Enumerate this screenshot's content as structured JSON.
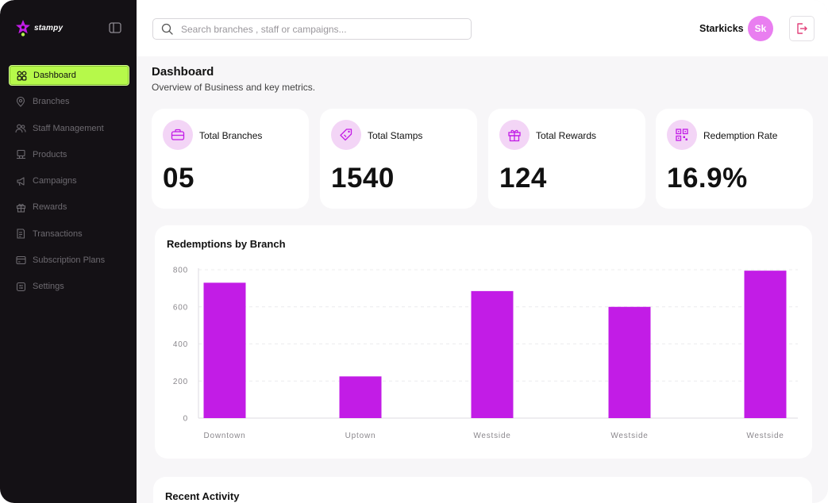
{
  "brand": {
    "name": "stampy",
    "accent": "#b6f94a",
    "primary": "#c21ce6"
  },
  "sidebar": {
    "items": [
      {
        "label": "Dashboard",
        "icon": "dashboard-icon",
        "active": true
      },
      {
        "label": "Branches",
        "icon": "location-pin-icon"
      },
      {
        "label": "Staff Management",
        "icon": "users-icon"
      },
      {
        "label": "Products",
        "icon": "box-icon"
      },
      {
        "label": "Campaigns",
        "icon": "megaphone-icon"
      },
      {
        "label": "Rewards",
        "icon": "gift-icon"
      },
      {
        "label": "Transactions",
        "icon": "receipt-icon"
      },
      {
        "label": "Subscription Plans",
        "icon": "card-icon"
      },
      {
        "label": "Settings",
        "icon": "settings-icon"
      }
    ]
  },
  "header": {
    "search_placeholder": "Search branches , staff or campaigns...",
    "user_name": "Starkicks",
    "avatar_initials": "Sk"
  },
  "page": {
    "title": "Dashboard",
    "subtitle": "Overview of Business and key metrics."
  },
  "stats": [
    {
      "label": "Total Branches",
      "value": "05",
      "icon": "briefcase-icon"
    },
    {
      "label": "Total Stamps",
      "value": "1540",
      "icon": "tag-icon"
    },
    {
      "label": "Total Rewards",
      "value": "124",
      "icon": "gift-icon"
    },
    {
      "label": "Redemption Rate",
      "value": "16.9%",
      "icon": "qr-code-icon"
    }
  ],
  "chart_data": {
    "type": "bar",
    "title": "Redemptions by Branch",
    "categories": [
      "Downtown",
      "Uptown",
      "Westside",
      "Westside",
      "Westside"
    ],
    "values": [
      730,
      225,
      685,
      600,
      795
    ],
    "ylim": [
      0,
      800
    ],
    "yticks": [
      "0",
      "200",
      "400",
      "600",
      "800"
    ],
    "bar_color": "#c21ce6",
    "grid": true
  },
  "activity": {
    "title": "Recent Activity"
  }
}
